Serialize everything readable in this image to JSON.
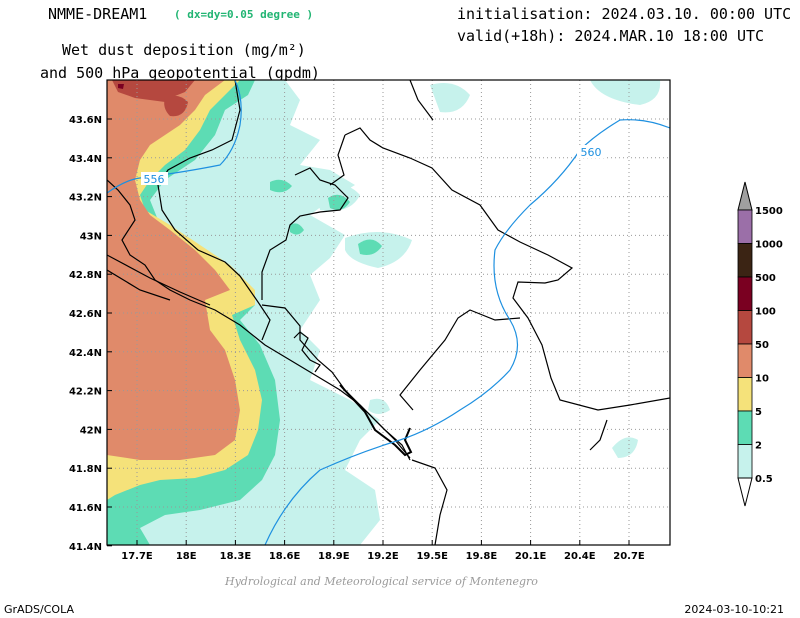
{
  "header": {
    "model_name": "NMME-DREAM1",
    "resolution": "( dx=dy=0.05 degree )",
    "initialisation": "initialisation: 2024.03.10. 00:00 UTC",
    "valid": "valid(+18h): 2024.MAR.10 18:00 UTC",
    "title_line1": "Wet dust deposition (mg/m²)",
    "title_line2": "and 500 hPa geopotential (gpdm)"
  },
  "map": {
    "lat_labels": [
      "43.6N",
      "43.4N",
      "43.2N",
      "43N",
      "42.8N",
      "42.6N",
      "42.4N",
      "42.2N",
      "42N",
      "41.8N",
      "41.6N",
      "41.4N"
    ],
    "lon_labels": [
      "17.7E",
      "18E",
      "18.3E",
      "18.6E",
      "18.9E",
      "19.2E",
      "19.5E",
      "19.8E",
      "20.1E",
      "20.4E",
      "20.7E"
    ],
    "contour_labels": [
      "556",
      "560"
    ],
    "contour_color": "#1e90e0"
  },
  "legend": {
    "levels": [
      "1500",
      "1000",
      "500",
      "100",
      "50",
      "10",
      "5",
      "2",
      "0.5"
    ],
    "colors": [
      "#9b6fa8",
      "#3b2414",
      "#7a0021",
      "#b5483f",
      "#e08a6a",
      "#f5e27a",
      "#5ddcb4",
      "#c6f2ec"
    ]
  },
  "footer": {
    "credit": "Hydrological and Meteorological service of Montenegro",
    "left": "GrADS/COLA",
    "right": "2024-03-10-10:21"
  }
}
